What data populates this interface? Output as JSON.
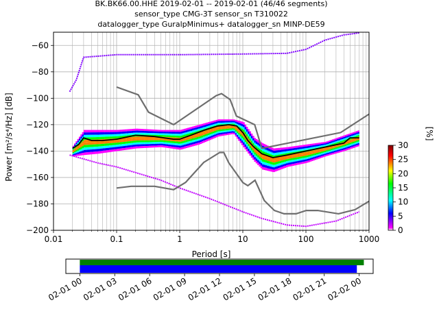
{
  "title": {
    "line1": "BK.BK66.00.HHE   2019-02-01 -- 2019-02-01  (46/46 segments)",
    "line2": "sensor_type CMG-3T sensor_sn T310022",
    "line3": "datalogger_type GuralpMinimus+ datalogger_sn MINP-DE59"
  },
  "chart_data": [
    {
      "type": "heatmap",
      "xlabel": "Period [s]",
      "ylabel": "Power [m²/s⁴/Hz] [dB]",
      "x_scale": "log",
      "xlim": [
        0.01,
        1000
      ],
      "ylim": [
        -200,
        -50
      ],
      "grid": true,
      "x_ticks": [
        {
          "value": 0.01,
          "label": "0.01"
        },
        {
          "value": 0.1,
          "label": "0.1"
        },
        {
          "value": 1,
          "label": "1"
        },
        {
          "value": 10,
          "label": "10"
        },
        {
          "value": 100,
          "label": "100"
        },
        {
          "value": 1000,
          "label": "1000"
        }
      ],
      "y_ticks": [
        {
          "value": -60,
          "label": "−60"
        },
        {
          "value": -80,
          "label": "−80"
        },
        {
          "value": -100,
          "label": "−100"
        },
        {
          "value": -120,
          "label": "−120"
        },
        {
          "value": -140,
          "label": "−140"
        },
        {
          "value": -160,
          "label": "−160"
        },
        {
          "value": -180,
          "label": "−180"
        },
        {
          "value": -200,
          "label": "−200"
        }
      ],
      "colorbar": {
        "label": "[%]",
        "range": [
          0,
          30
        ],
        "ticks": [
          {
            "value": 0,
            "label": "0"
          },
          {
            "value": 5,
            "label": "5"
          },
          {
            "value": 10,
            "label": "10"
          },
          {
            "value": 15,
            "label": "15"
          },
          {
            "value": 20,
            "label": "20"
          },
          {
            "value": 25,
            "label": "25"
          },
          {
            "value": 30,
            "label": "30"
          }
        ],
        "colors": [
          "#ffffff",
          "#ff00ff",
          "#0000ff",
          "#00ffff",
          "#00ff00",
          "#ffff00",
          "#ff0000",
          "#800000"
        ]
      },
      "noise_models": {
        "high": [
          [
            0.1,
            -91.5
          ],
          [
            0.22,
            -97.4
          ],
          [
            0.32,
            -110.5
          ],
          [
            0.8,
            -120
          ],
          [
            3.8,
            -98
          ],
          [
            4.6,
            -96.5
          ],
          [
            6.3,
            -101
          ],
          [
            7.9,
            -113.5
          ],
          [
            15.4,
            -120
          ],
          [
            20,
            -138
          ],
          [
            354.8,
            -126
          ],
          [
            1000,
            -112
          ]
        ],
        "low": [
          [
            0.1,
            -168
          ],
          [
            0.17,
            -166.7
          ],
          [
            0.4,
            -166.7
          ],
          [
            0.8,
            -169.2
          ],
          [
            1.24,
            -163.7
          ],
          [
            2.4,
            -148.6
          ],
          [
            4.3,
            -141.1
          ],
          [
            5.0,
            -141.1
          ],
          [
            6.0,
            -149
          ],
          [
            10,
            -163.8
          ],
          [
            12,
            -166.2
          ],
          [
            15.6,
            -162.1
          ],
          [
            21.9,
            -177.5
          ],
          [
            31.6,
            -185
          ],
          [
            45,
            -187.5
          ],
          [
            70,
            -187.5
          ],
          [
            101,
            -185
          ],
          [
            154,
            -185
          ],
          [
            328,
            -187.5
          ],
          [
            600,
            -184.4
          ],
          [
            1000,
            -178
          ]
        ]
      },
      "series": [
        {
          "values": [
            [
              0.02,
              -138
            ],
            [
              0.025,
              -135
            ],
            [
              0.03,
              -130
            ],
            [
              0.04,
              -132
            ],
            [
              0.06,
              -132
            ],
            [
              0.1,
              -131
            ],
            [
              0.2,
              -128
            ],
            [
              0.4,
              -129
            ],
            [
              0.8,
              -131
            ],
            [
              1.0,
              -131
            ],
            [
              1.5,
              -128
            ],
            [
              2.5,
              -124
            ],
            [
              4.0,
              -121
            ],
            [
              6.0,
              -120
            ],
            [
              8.0,
              -121
            ],
            [
              10,
              -126
            ],
            [
              12,
              -132
            ],
            [
              15,
              -137
            ],
            [
              20,
              -142
            ],
            [
              30,
              -145
            ],
            [
              50,
              -143
            ],
            [
              100,
              -140
            ],
            [
              200,
              -137
            ],
            [
              400,
              -134
            ],
            [
              500,
              -130
            ],
            [
              700,
              -130
            ]
          ]
        }
      ],
      "bands": [
        {
          "x": [
            0.02,
            0.03,
            0.05,
            0.1,
            0.2,
            0.5,
            1,
            2,
            4,
            7,
            10,
            15,
            20,
            30,
            50,
            100,
            200,
            400,
            700
          ],
          "upper": [
            -136,
            -124,
            -124,
            -124,
            -123,
            -124,
            -124,
            -120,
            -116,
            -116,
            -118,
            -130,
            -134,
            -138,
            -137,
            -135,
            -133,
            -128,
            -124
          ],
          "lower": [
            -144,
            -143,
            -142,
            -140,
            -138,
            -137,
            -139,
            -135,
            -129,
            -127,
            -137,
            -148,
            -154,
            -156,
            -152,
            -149,
            -144,
            -140,
            -136
          ]
        }
      ],
      "outliers": {
        "upper_line": [
          [
            0.018,
            -95
          ],
          [
            0.023,
            -86
          ],
          [
            0.03,
            -69
          ],
          [
            0.1,
            -67
          ],
          [
            1,
            -67
          ],
          [
            10,
            -66.5
          ],
          [
            50,
            -66
          ],
          [
            100,
            -63
          ],
          [
            200,
            -56
          ],
          [
            400,
            -52
          ],
          [
            700,
            -50.5
          ]
        ],
        "lower_line": [
          [
            0.018,
            -143
          ],
          [
            0.05,
            -149
          ],
          [
            0.1,
            -152
          ],
          [
            0.5,
            -162
          ],
          [
            1,
            -168
          ],
          [
            3,
            -176
          ],
          [
            10,
            -186
          ],
          [
            20,
            -191
          ],
          [
            50,
            -196
          ],
          [
            100,
            -197
          ],
          [
            300,
            -193
          ],
          [
            700,
            -186
          ]
        ]
      }
    },
    {
      "type": "bar",
      "x_ticks": [
        {
          "value": 0,
          "label": "02-01 00"
        },
        {
          "value": 3,
          "label": "02-01 03"
        },
        {
          "value": 6,
          "label": "02-01 06"
        },
        {
          "value": 9,
          "label": "02-01 09"
        },
        {
          "value": 12,
          "label": "02-01 12"
        },
        {
          "value": 15,
          "label": "02-01 15"
        },
        {
          "value": 18,
          "label": "02-01 18"
        },
        {
          "value": 21,
          "label": "02-01 21"
        },
        {
          "value": 24,
          "label": "02-02 00"
        }
      ],
      "xlim": [
        -1.2,
        25.2
      ],
      "series": [
        {
          "color": "#008000",
          "start": 0,
          "end": 24.4
        },
        {
          "color": "#0000ff",
          "start": 0,
          "end": 23.8
        }
      ]
    }
  ]
}
